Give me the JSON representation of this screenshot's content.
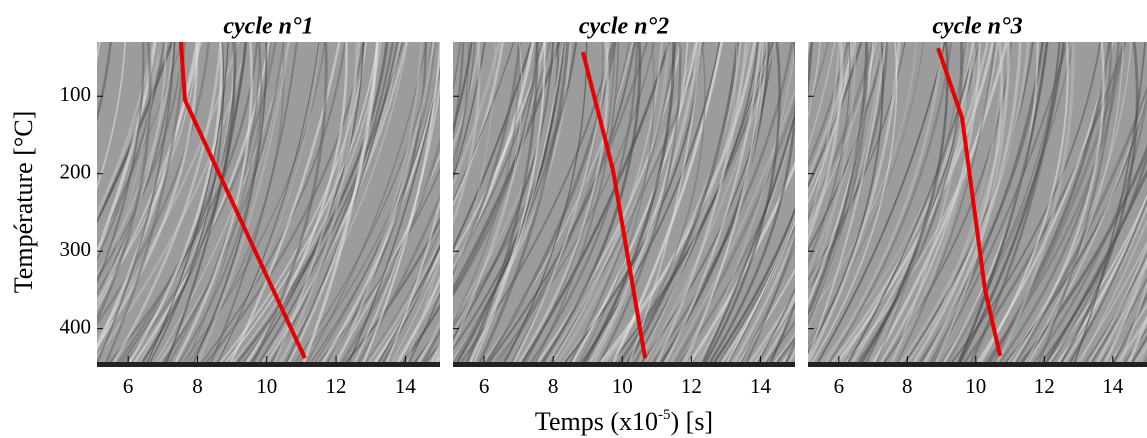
{
  "chart_data": [
    {
      "type": "line",
      "title": "cycle n°1",
      "ylabel": "Température [°C]",
      "xlim": [
        5.1,
        15
      ],
      "xticks": [
        6,
        8,
        10,
        12,
        14
      ],
      "ylim": [
        443,
        30
      ],
      "yticks": [
        100,
        200,
        300,
        400
      ],
      "series": [
        {
          "color": "#e80000",
          "x": [
            7.52,
            7.64,
            11.1
          ],
          "values": [
            30,
            105,
            438
          ]
        }
      ]
    },
    {
      "type": "line",
      "title": "cycle n°2",
      "xlabel": [
        "Temps (x10",
        "-5",
        ") [s]"
      ],
      "xlim": [
        5.1,
        15
      ],
      "xticks": [
        6,
        8,
        10,
        12,
        14
      ],
      "ylim": [
        443,
        30
      ],
      "yticks": [
        100,
        200,
        300,
        400
      ],
      "series": [
        {
          "color": "#e80000",
          "x": [
            8.86,
            9.73,
            10.66
          ],
          "values": [
            43,
            195,
            438
          ]
        }
      ]
    },
    {
      "type": "line",
      "title": "cycle n°3",
      "xlim": [
        5.1,
        15
      ],
      "xticks": [
        6,
        8,
        10,
        12,
        14
      ],
      "ylim": [
        443,
        30
      ],
      "yticks": [
        100,
        200,
        300,
        400
      ],
      "series": [
        {
          "color": "#e80000",
          "x": [
            8.9,
            9.6,
            10.27,
            10.71
          ],
          "values": [
            38,
            128,
            350,
            435
          ]
        }
      ]
    }
  ]
}
